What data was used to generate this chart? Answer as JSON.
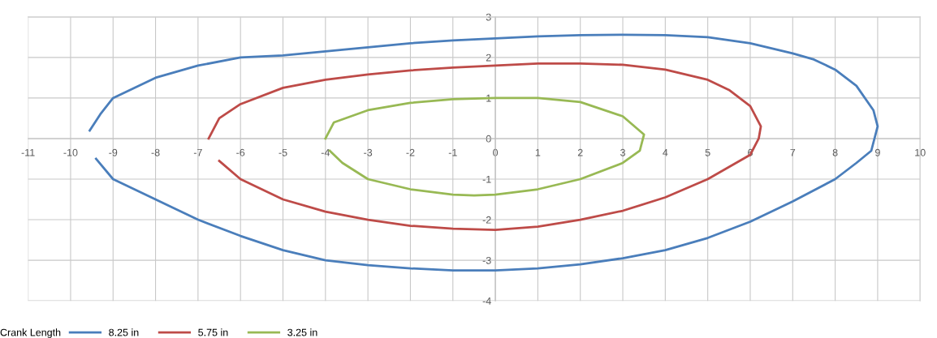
{
  "chart_data": {
    "type": "line",
    "legend_title": "Crank Length",
    "legend": "bottom",
    "grid": true,
    "marker": "none",
    "line_style": "solid",
    "xlim": [
      -11,
      10
    ],
    "xticks": [
      -11,
      -10,
      -9,
      -8,
      -7,
      -6,
      -5,
      -4,
      -3,
      -2,
      -1,
      0,
      1,
      2,
      3,
      4,
      5,
      6,
      7,
      8,
      9,
      10
    ],
    "ylim": [
      -4,
      3
    ],
    "yticks": [
      -4,
      -3,
      -2,
      -1,
      0,
      1,
      2,
      3
    ],
    "series": [
      {
        "name": "8.25 in",
        "color": "#4a7ebb",
        "x": [
          -9.55,
          -9.3,
          -9,
          -8,
          -7,
          -6,
          -5,
          -4,
          -3,
          -2,
          -1,
          0,
          1,
          2,
          3,
          4,
          5,
          6,
          7,
          7.5,
          8,
          8.5,
          8.9,
          9.0,
          8.85,
          8.5,
          8,
          7,
          6,
          5,
          4,
          3,
          2,
          1,
          0,
          -1,
          -2,
          -3,
          -4,
          -5,
          -6,
          -7,
          -8,
          -9,
          -9.4
        ],
        "values": [
          0.2,
          0.6,
          1.0,
          1.5,
          1.8,
          2.0,
          2.05,
          2.15,
          2.25,
          2.35,
          2.42,
          2.47,
          2.52,
          2.55,
          2.56,
          2.55,
          2.5,
          2.35,
          2.1,
          1.95,
          1.7,
          1.3,
          0.7,
          0.3,
          -0.3,
          -0.6,
          -1.0,
          -1.55,
          -2.05,
          -2.45,
          -2.75,
          -2.95,
          -3.1,
          -3.2,
          -3.25,
          -3.25,
          -3.2,
          -3.12,
          -3.0,
          -2.75,
          -2.4,
          -2.0,
          -1.5,
          -1.0,
          -0.5
        ]
      },
      {
        "name": "5.75 in",
        "color": "#be4b48",
        "x": [
          -6.75,
          -6.5,
          -6,
          -5,
          -4,
          -3,
          -2,
          -1,
          0,
          1,
          2,
          3,
          4,
          5,
          5.5,
          6,
          6.25,
          6.2,
          6,
          5.5,
          5,
          4,
          3,
          2,
          1,
          0,
          -1,
          -2,
          -3,
          -4,
          -5,
          -6,
          -6.5
        ],
        "values": [
          0.0,
          0.5,
          0.85,
          1.25,
          1.45,
          1.58,
          1.68,
          1.75,
          1.8,
          1.85,
          1.85,
          1.82,
          1.7,
          1.45,
          1.2,
          0.8,
          0.3,
          0.0,
          -0.4,
          -0.7,
          -1.0,
          -1.45,
          -1.78,
          -2.0,
          -2.17,
          -2.25,
          -2.22,
          -2.15,
          -2.0,
          -1.8,
          -1.5,
          -1.0,
          -0.55
        ]
      },
      {
        "name": "3.25 in",
        "color": "#98b954",
        "x": [
          -4.0,
          -3.8,
          -3,
          -2,
          -1,
          0,
          1,
          2,
          3,
          3.5,
          3.4,
          3,
          2,
          1,
          0,
          -0.5,
          -1,
          -2,
          -3,
          -3.6,
          -3.9
        ],
        "values": [
          0.0,
          0.4,
          0.7,
          0.88,
          0.97,
          1.0,
          1.0,
          0.9,
          0.55,
          0.1,
          -0.3,
          -0.6,
          -1.0,
          -1.25,
          -1.38,
          -1.4,
          -1.38,
          -1.25,
          -1.0,
          -0.6,
          -0.3
        ]
      }
    ]
  }
}
